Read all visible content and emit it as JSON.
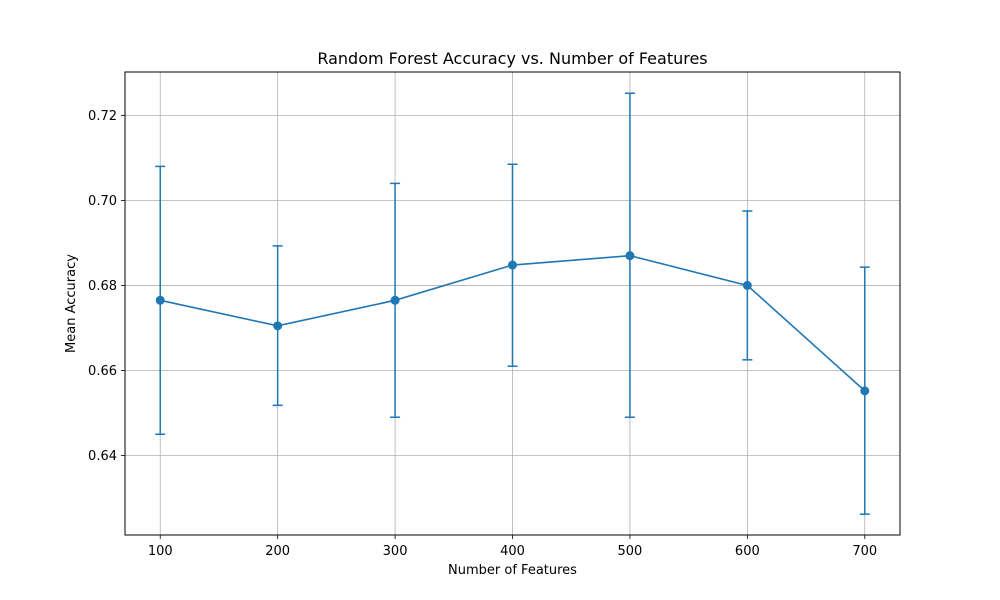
{
  "chart_data": {
    "type": "line",
    "title": "Random Forest Accuracy vs. Number of Features",
    "xlabel": "Number of Features",
    "ylabel": "Mean Accuracy",
    "x": [
      100,
      200,
      300,
      400,
      500,
      600,
      700
    ],
    "series": [
      {
        "values": [
          0.6765,
          0.6705,
          0.6765,
          0.6848,
          0.687,
          0.68,
          0.6552
        ],
        "error_lower": [
          0.645,
          0.6518,
          0.649,
          0.661,
          0.649,
          0.6625,
          0.6262
        ],
        "error_upper": [
          0.708,
          0.6893,
          0.704,
          0.7085,
          0.7252,
          0.6975,
          0.6843
        ],
        "color": "#1f77b4",
        "marker": "circle",
        "error_bars": true
      }
    ],
    "xticks": [
      "100",
      "200",
      "300",
      "400",
      "500",
      "600",
      "700"
    ],
    "yticks": [
      "0.64",
      "0.66",
      "0.68",
      "0.70",
      "0.72"
    ],
    "xlim": [
      70,
      730
    ],
    "ylim": [
      0.6213,
      0.7302
    ],
    "grid": true,
    "legend": false
  }
}
